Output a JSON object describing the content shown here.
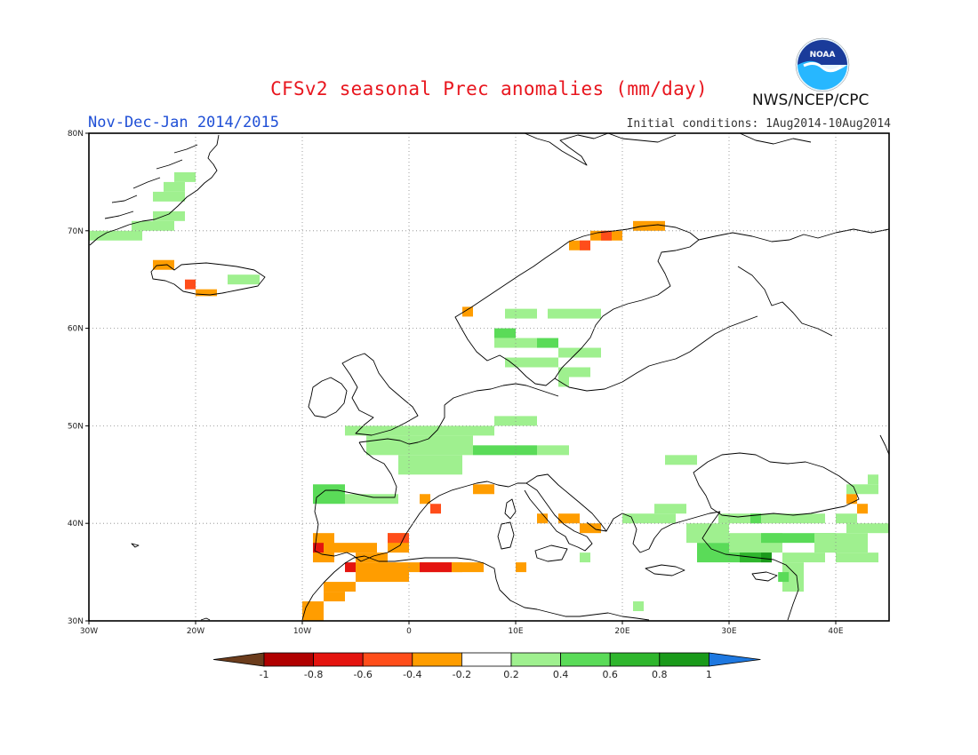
{
  "header": {
    "title": "CFSv2 seasonal Prec anomalies (mm/day)",
    "period": "Nov-Dec-Jan 2014/2015",
    "initial_conditions": "Initial conditions: 1Aug2014-10Aug2014",
    "agency": "NWS/NCEP/CPC",
    "logo_text": "NOAA"
  },
  "map": {
    "lon_range": [
      -30,
      45
    ],
    "lat_range": [
      30,
      80
    ],
    "lat_labels": [
      {
        "lat": 80,
        "text": "80N"
      },
      {
        "lat": 70,
        "text": "70N"
      },
      {
        "lat": 60,
        "text": "60N"
      },
      {
        "lat": 50,
        "text": "50N"
      },
      {
        "lat": 40,
        "text": "40N"
      },
      {
        "lat": 30,
        "text": "30N"
      }
    ],
    "lon_labels": [
      {
        "lon": -30,
        "text": "30W"
      },
      {
        "lon": -20,
        "text": "20W"
      },
      {
        "lon": -10,
        "text": "10W"
      },
      {
        "lon": 0,
        "text": "0"
      },
      {
        "lon": 10,
        "text": "10E"
      },
      {
        "lon": 20,
        "text": "20E"
      },
      {
        "lon": 30,
        "text": "30E"
      },
      {
        "lon": 40,
        "text": "40E"
      }
    ],
    "grid": true,
    "anomaly_cells": [
      {
        "lon": -30,
        "lat": 69,
        "w": 5,
        "h": 1,
        "v": 0.3
      },
      {
        "lon": -26,
        "lat": 70,
        "w": 4,
        "h": 1,
        "v": 0.3
      },
      {
        "lon": -24,
        "lat": 71,
        "w": 3,
        "h": 1,
        "v": 0.3
      },
      {
        "lon": -24,
        "lat": 73,
        "w": 3,
        "h": 1,
        "v": 0.3
      },
      {
        "lon": -23,
        "lat": 74,
        "w": 2,
        "h": 1,
        "v": 0.3
      },
      {
        "lon": -22,
        "lat": 75,
        "w": 2,
        "h": 1,
        "v": 0.3
      },
      {
        "lon": -24,
        "lat": 66,
        "w": 2,
        "h": 1,
        "v": -0.3
      },
      {
        "lon": -21,
        "lat": 64,
        "w": 1,
        "h": 1,
        "v": -0.6
      },
      {
        "lon": -20,
        "lat": 63.3,
        "w": 2,
        "h": 0.7,
        "v": -0.3
      },
      {
        "lon": -17,
        "lat": 64.5,
        "w": 3,
        "h": 1,
        "v": 0.3
      },
      {
        "lon": 5,
        "lat": 61.2,
        "w": 1,
        "h": 1,
        "v": -0.3
      },
      {
        "lon": 9,
        "lat": 61,
        "w": 3,
        "h": 1,
        "v": 0.3
      },
      {
        "lon": 13,
        "lat": 61,
        "w": 5,
        "h": 1,
        "v": 0.3
      },
      {
        "lon": 8,
        "lat": 59,
        "w": 2,
        "h": 1,
        "v": 0.5
      },
      {
        "lon": 8,
        "lat": 58,
        "w": 4,
        "h": 1,
        "v": 0.3
      },
      {
        "lon": 12,
        "lat": 58,
        "w": 2,
        "h": 1,
        "v": 0.5
      },
      {
        "lon": 14,
        "lat": 57,
        "w": 4,
        "h": 1,
        "v": 0.3
      },
      {
        "lon": 9,
        "lat": 56,
        "w": 5,
        "h": 1,
        "v": 0.3
      },
      {
        "lon": 14,
        "lat": 55,
        "w": 3,
        "h": 1,
        "v": 0.3
      },
      {
        "lon": 14,
        "lat": 54,
        "w": 1,
        "h": 1,
        "v": 0.3
      },
      {
        "lon": 15,
        "lat": 68,
        "w": 2,
        "h": 1,
        "v": -0.3
      },
      {
        "lon": 16,
        "lat": 68,
        "w": 1,
        "h": 1,
        "v": -0.6
      },
      {
        "lon": 17,
        "lat": 69,
        "w": 3,
        "h": 1,
        "v": -0.3
      },
      {
        "lon": 18,
        "lat": 69,
        "w": 1,
        "h": 1,
        "v": -0.6
      },
      {
        "lon": 21,
        "lat": 70,
        "w": 3,
        "h": 1,
        "v": -0.3
      },
      {
        "lon": -6,
        "lat": 49,
        "w": 7,
        "h": 1,
        "v": 0.3
      },
      {
        "lon": 1,
        "lat": 49,
        "w": 7,
        "h": 1,
        "v": 0.3
      },
      {
        "lon": 8,
        "lat": 50,
        "w": 4,
        "h": 1,
        "v": 0.3
      },
      {
        "lon": -4,
        "lat": 47,
        "w": 10,
        "h": 2,
        "v": 0.3
      },
      {
        "lon": 6,
        "lat": 47,
        "w": 6,
        "h": 1,
        "v": 0.5
      },
      {
        "lon": -1,
        "lat": 45,
        "w": 6,
        "h": 2,
        "v": 0.3
      },
      {
        "lon": 12,
        "lat": 47,
        "w": 3,
        "h": 1,
        "v": 0.3
      },
      {
        "lon": 24,
        "lat": 46,
        "w": 3,
        "h": 1,
        "v": 0.3
      },
      {
        "lon": -9,
        "lat": 42,
        "w": 3,
        "h": 2,
        "v": 0.5
      },
      {
        "lon": -6,
        "lat": 42,
        "w": 5,
        "h": 1,
        "v": 0.3
      },
      {
        "lon": 1,
        "lat": 42,
        "w": 1,
        "h": 1,
        "v": -0.3
      },
      {
        "lon": 2,
        "lat": 41,
        "w": 1,
        "h": 1,
        "v": -0.6
      },
      {
        "lon": 6,
        "lat": 43,
        "w": 2,
        "h": 1,
        "v": -0.3
      },
      {
        "lon": 12,
        "lat": 40,
        "w": 1,
        "h": 1,
        "v": -0.3
      },
      {
        "lon": 14,
        "lat": 40,
        "w": 2,
        "h": 1,
        "v": -0.3
      },
      {
        "lon": 16,
        "lat": 39,
        "w": 2,
        "h": 1,
        "v": -0.3
      },
      {
        "lon": -9,
        "lat": 36,
        "w": 2,
        "h": 3,
        "v": -0.3
      },
      {
        "lon": -9,
        "lat": 37,
        "w": 1,
        "h": 1,
        "v": -0.7
      },
      {
        "lon": -7,
        "lat": 37,
        "w": 4,
        "h": 1,
        "v": -0.3
      },
      {
        "lon": -5,
        "lat": 36,
        "w": 3,
        "h": 1,
        "v": -0.3
      },
      {
        "lon": -2,
        "lat": 37,
        "w": 2,
        "h": 2,
        "v": -0.3
      },
      {
        "lon": -2,
        "lat": 38,
        "w": 2,
        "h": 1,
        "v": -0.6
      },
      {
        "lon": -6,
        "lat": 35,
        "w": 1,
        "h": 1,
        "v": -0.7
      },
      {
        "lon": -5,
        "lat": 34,
        "w": 5,
        "h": 2,
        "v": -0.3
      },
      {
        "lon": 0,
        "lat": 35,
        "w": 5,
        "h": 1,
        "v": -0.3
      },
      {
        "lon": 1,
        "lat": 35,
        "w": 3,
        "h": 1,
        "v": -0.7
      },
      {
        "lon": 4,
        "lat": 35,
        "w": 3,
        "h": 1,
        "v": -0.3
      },
      {
        "lon": 10,
        "lat": 35,
        "w": 1,
        "h": 1,
        "v": -0.3
      },
      {
        "lon": -8,
        "lat": 33,
        "w": 3,
        "h": 1,
        "v": -0.3
      },
      {
        "lon": -8,
        "lat": 32,
        "w": 2,
        "h": 1,
        "v": -0.3
      },
      {
        "lon": -10,
        "lat": 30,
        "w": 2,
        "h": 2,
        "v": -0.3
      },
      {
        "lon": 20,
        "lat": 40,
        "w": 5,
        "h": 1,
        "v": 0.3
      },
      {
        "lon": 23,
        "lat": 41,
        "w": 3,
        "h": 1,
        "v": 0.3
      },
      {
        "lon": 26,
        "lat": 38,
        "w": 4,
        "h": 2,
        "v": 0.3
      },
      {
        "lon": 27,
        "lat": 36,
        "w": 6,
        "h": 2,
        "v": 0.5
      },
      {
        "lon": 30,
        "lat": 37,
        "w": 5,
        "h": 2,
        "v": 0.3
      },
      {
        "lon": 33,
        "lat": 38,
        "w": 7,
        "h": 1,
        "v": 0.5
      },
      {
        "lon": 35,
        "lat": 36,
        "w": 4,
        "h": 1,
        "v": 0.3
      },
      {
        "lon": 31,
        "lat": 36,
        "w": 3,
        "h": 1,
        "v": 0.7
      },
      {
        "lon": 33,
        "lat": 36,
        "w": 1,
        "h": 1,
        "v": 0.9
      },
      {
        "lon": 38,
        "lat": 37,
        "w": 5,
        "h": 2,
        "v": 0.3
      },
      {
        "lon": 40,
        "lat": 36,
        "w": 4,
        "h": 1,
        "v": 0.3
      },
      {
        "lon": 41,
        "lat": 39,
        "w": 4,
        "h": 1,
        "v": 0.3
      },
      {
        "lon": 40,
        "lat": 40,
        "w": 2,
        "h": 1,
        "v": 0.3
      },
      {
        "lon": 33,
        "lat": 40,
        "w": 6,
        "h": 1,
        "v": 0.3
      },
      {
        "lon": 29,
        "lat": 40,
        "w": 4,
        "h": 1,
        "v": 0.3
      },
      {
        "lon": 32,
        "lat": 40,
        "w": 1,
        "h": 1,
        "v": 0.5
      },
      {
        "lon": 35,
        "lat": 33,
        "w": 2,
        "h": 3,
        "v": 0.3
      },
      {
        "lon": 34.6,
        "lat": 34,
        "w": 1,
        "h": 1,
        "v": 0.5
      },
      {
        "lon": 41,
        "lat": 43,
        "w": 3,
        "h": 1,
        "v": 0.3
      },
      {
        "lon": 43,
        "lat": 44,
        "w": 1,
        "h": 1,
        "v": 0.3
      },
      {
        "lon": 41,
        "lat": 42,
        "w": 1,
        "h": 1,
        "v": -0.3
      },
      {
        "lon": 42,
        "lat": 41,
        "w": 1,
        "h": 1,
        "v": -0.3
      },
      {
        "lon": 16,
        "lat": 36,
        "w": 1,
        "h": 1,
        "v": 0.3
      },
      {
        "lon": 21,
        "lat": 31,
        "w": 1,
        "h": 1,
        "v": 0.3
      }
    ]
  },
  "colorbar": {
    "levels": [
      -1,
      -0.8,
      -0.6,
      -0.4,
      -0.2,
      0.2,
      0.4,
      0.6,
      0.8,
      1
    ],
    "labels": [
      "-1",
      "-0.8",
      "-0.6",
      "-0.4",
      "-0.2",
      "0.2",
      "0.4",
      "0.6",
      "0.8",
      "1"
    ],
    "colors": [
      "#6b3c1c",
      "#b00000",
      "#e4140f",
      "#ff4d1a",
      "#ff9d00",
      "#ffffff",
      "#9ff08f",
      "#5adb58",
      "#2fb62d",
      "#1a9a1a",
      "#1e78e0"
    ]
  }
}
